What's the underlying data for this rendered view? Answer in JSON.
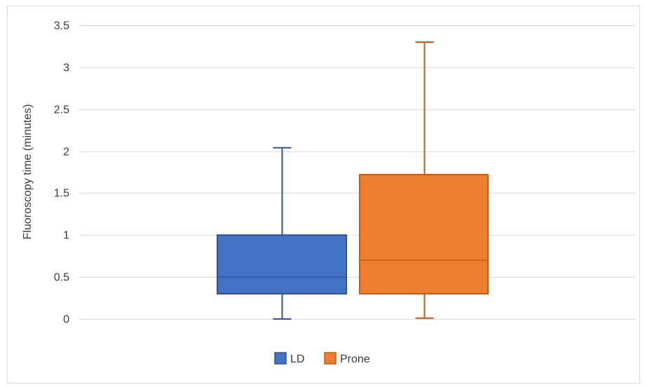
{
  "chart_data": {
    "type": "box",
    "title": "",
    "xlabel": "",
    "ylabel": "Fluoroscopy time (minutes)",
    "ylim": [
      0,
      3.5
    ],
    "yticks": [
      "0",
      "0.5",
      "1",
      "1.5",
      "2",
      "2.5",
      "3",
      "3.5"
    ],
    "grid": true,
    "legend_position": "bottom",
    "series": [
      {
        "name": "LD",
        "color": "#4472c4",
        "border": "#2f5597",
        "min": 0,
        "q1": 0.3,
        "median": 0.5,
        "q3": 1.0,
        "max": 2.04
      },
      {
        "name": "Prone",
        "color": "#ed7d31",
        "border": "#c55a11",
        "min": 0.01,
        "q1": 0.3,
        "median": 0.7,
        "q3": 1.72,
        "max": 3.3
      }
    ]
  }
}
